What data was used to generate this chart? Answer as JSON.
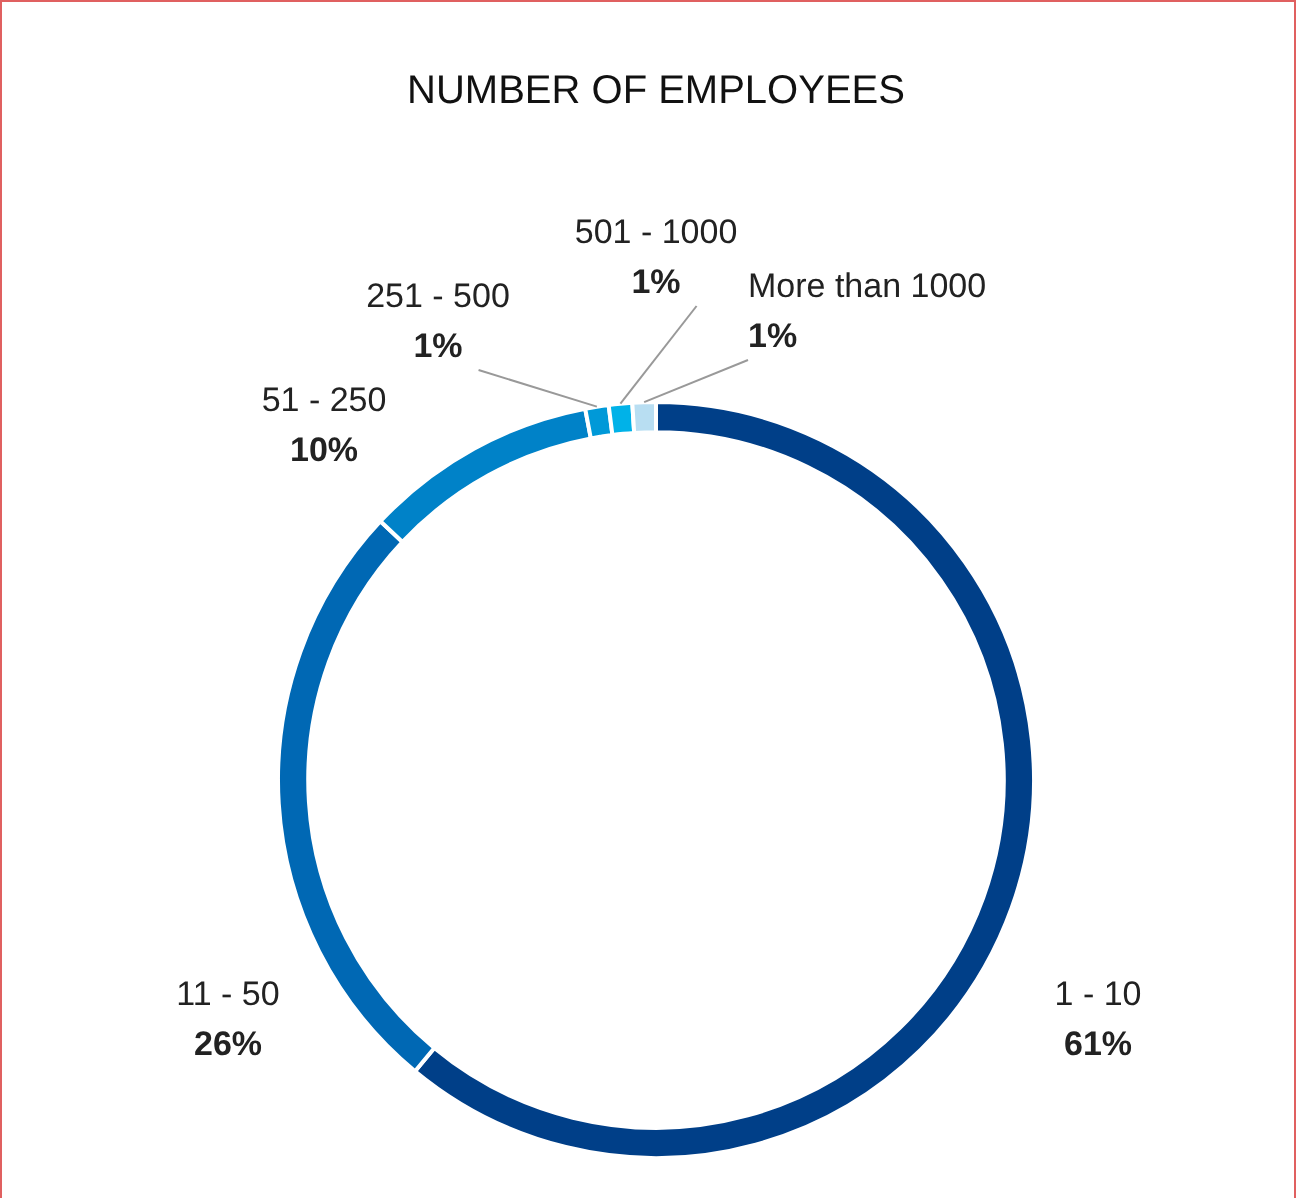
{
  "chart_data": {
    "type": "donut",
    "title": "NUMBER OF EMPLOYEES",
    "categories": [
      "1 - 10",
      "11 - 50",
      "51 - 250",
      "251 - 500",
      "501 - 1000",
      "More than 1000"
    ],
    "values": [
      61,
      26,
      10,
      1,
      1,
      1
    ],
    "colors": [
      "#003f88",
      "#0068b4",
      "#0082c8",
      "#0099d8",
      "#00b2e8",
      "#b8def2"
    ],
    "value_labels": [
      "61%",
      "26%",
      "10%",
      "1%",
      "1%",
      "1%"
    ],
    "legend": false
  }
}
